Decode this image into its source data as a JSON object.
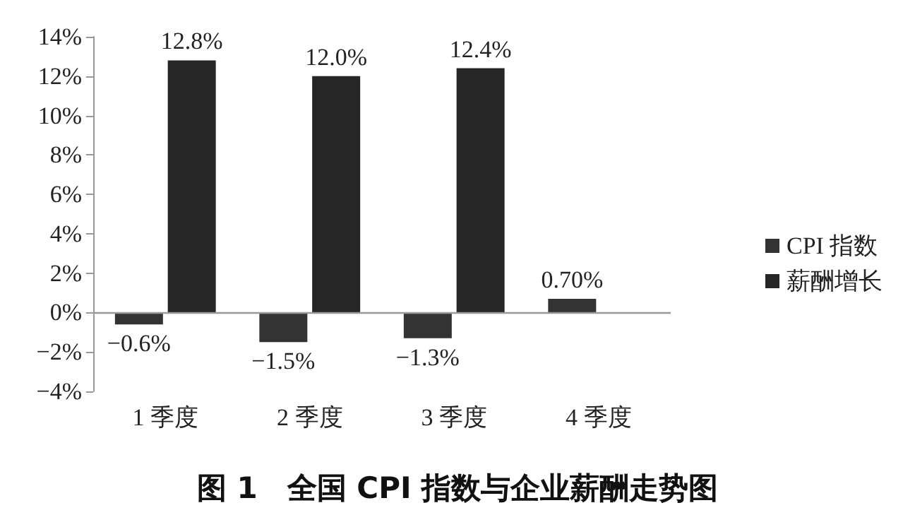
{
  "chart_data": {
    "type": "bar",
    "title": "图 1　全国 CPI 指数与企业薪酬走势图",
    "categories": [
      "1 季度",
      "2 季度",
      "3 季度",
      "4 季度"
    ],
    "series": [
      {
        "name": "CPI 指数",
        "color": "#333333",
        "values": [
          -0.6,
          -1.5,
          -1.3,
          0.7
        ],
        "value_labels": [
          "−0.6%",
          "−1.5%",
          "−1.3%",
          "0.70%"
        ]
      },
      {
        "name": "薪酬增长",
        "color": "#262626",
        "values": [
          12.8,
          12.0,
          12.4,
          null
        ],
        "value_labels": [
          "12.8%",
          "12.0%",
          "12.4%",
          null
        ]
      }
    ],
    "ylim": [
      -4,
      14
    ],
    "yticks": [
      {
        "value": -4,
        "label": "−4%"
      },
      {
        "value": -2,
        "label": "−2%"
      },
      {
        "value": 0,
        "label": "0%"
      },
      {
        "value": 2,
        "label": "2%"
      },
      {
        "value": 4,
        "label": "4%"
      },
      {
        "value": 6,
        "label": "6%"
      },
      {
        "value": 8,
        "label": "8%"
      },
      {
        "value": 10,
        "label": "10%"
      },
      {
        "value": 12,
        "label": "12%"
      },
      {
        "value": 14,
        "label": "14%"
      }
    ],
    "ref_lines": [
      {
        "axis": "y",
        "value": 0,
        "color": "#999999"
      }
    ],
    "legend": "right"
  }
}
